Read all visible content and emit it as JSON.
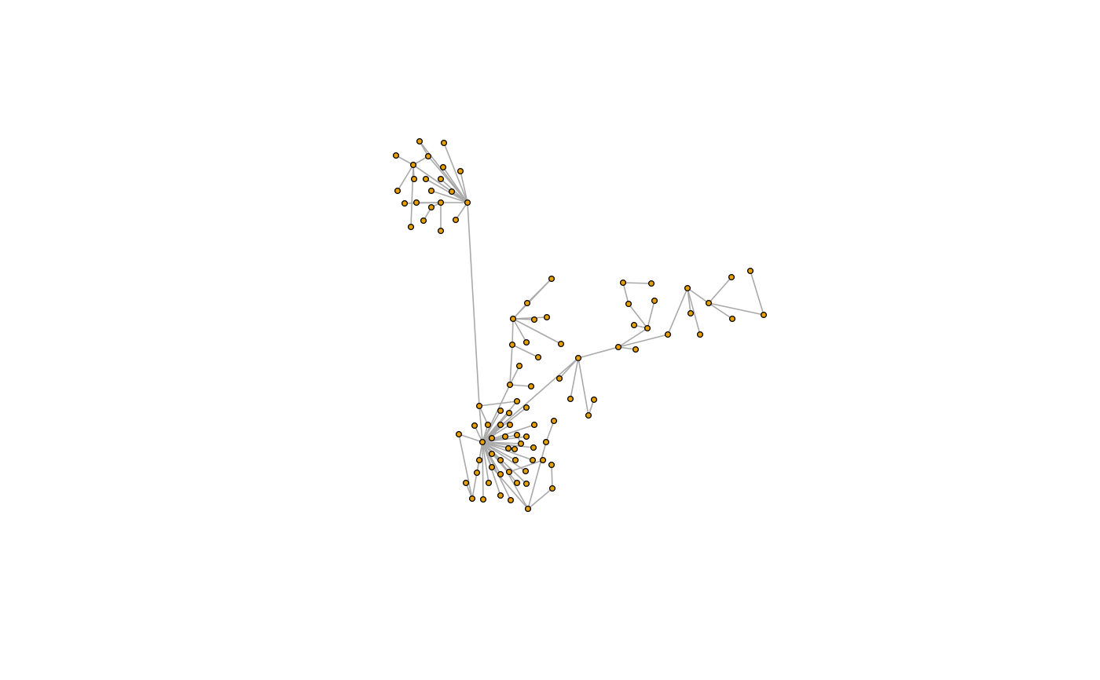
{
  "diagram": {
    "type": "network-graph",
    "node_count": 108,
    "edge_count": 107,
    "colors": {
      "node_fill": "#e69f00",
      "node_stroke": "#000000",
      "edge": "#a9a9a9",
      "background": "#ffffff"
    },
    "clusters": [
      "top-left-star-cluster",
      "central-dense-cluster",
      "right-branching-chain"
    ]
  }
}
